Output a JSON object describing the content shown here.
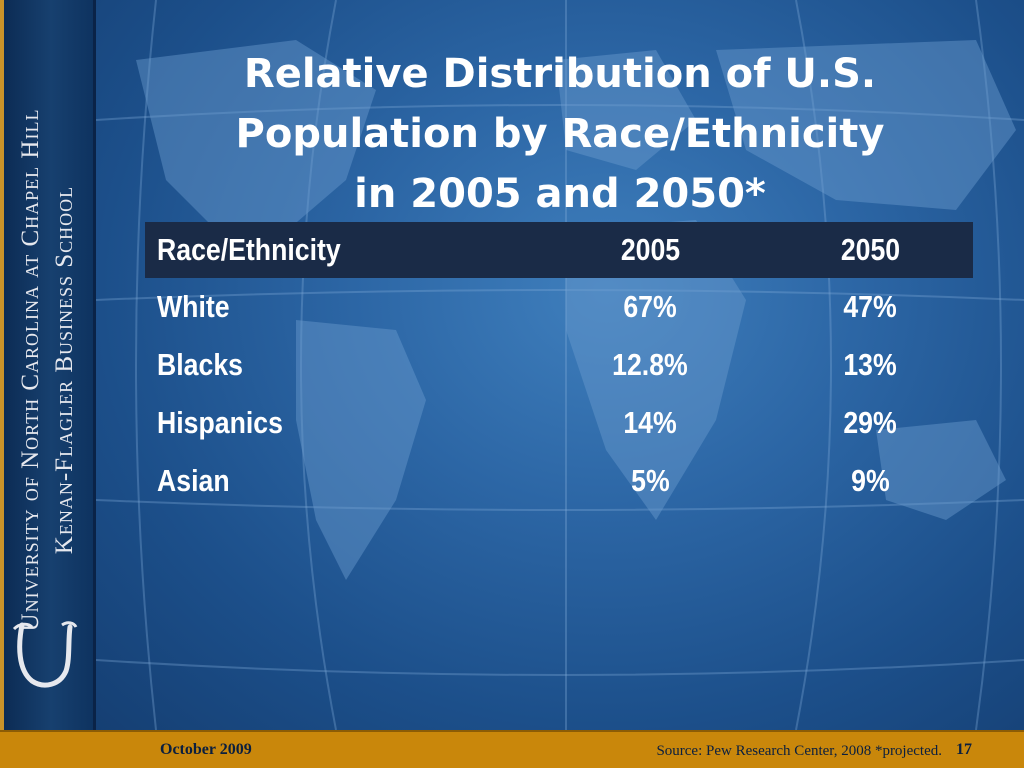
{
  "sidebar": {
    "school_line1": "University of North Carolina at Chapel Hill",
    "school_line2": "Kenan-Flagler Business School"
  },
  "slide": {
    "title": "Relative Distribution of U.S.\nPopulation by Race/Ethnicity\nin 2005 and  2050*"
  },
  "table": {
    "headers": [
      "Race/Ethnicity",
      "2005",
      "2050"
    ],
    "rows": [
      [
        "White",
        "67%",
        "47%"
      ],
      [
        "Blacks",
        "12.8%",
        "13%"
      ],
      [
        "Hispanics",
        "14%",
        "29%"
      ],
      [
        "Asian",
        "5%",
        "9%"
      ]
    ]
  },
  "footer": {
    "date": "October 2009",
    "source": "Source: Pew Research Center, 2008 *projected.",
    "page_number": "17"
  },
  "colors": {
    "background": "#1a4d86",
    "footer": "#c9870b",
    "header_row": "#1a2b47",
    "sidebar_accent": "#c9932a"
  }
}
